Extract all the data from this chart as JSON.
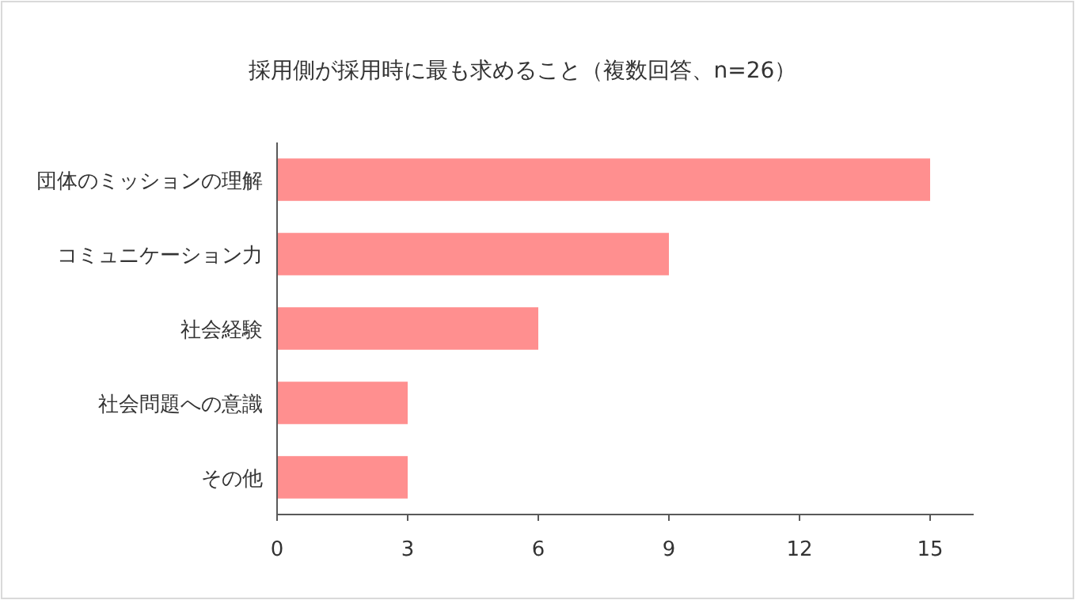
{
  "chart_data": {
    "type": "bar",
    "orientation": "horizontal",
    "title": "採用側が採用時に最も求めること（複数回答、n=26）",
    "categories": [
      "団体のミッションの理解",
      "コミュニケーション力",
      "社会経験",
      "社会問題への意識",
      "その他"
    ],
    "values": [
      15,
      9,
      6,
      3,
      3
    ],
    "color": "#ff8f8f",
    "xlim": [
      0,
      16
    ],
    "xticks": [
      0,
      3,
      6,
      9,
      12,
      15
    ],
    "grid": false
  }
}
